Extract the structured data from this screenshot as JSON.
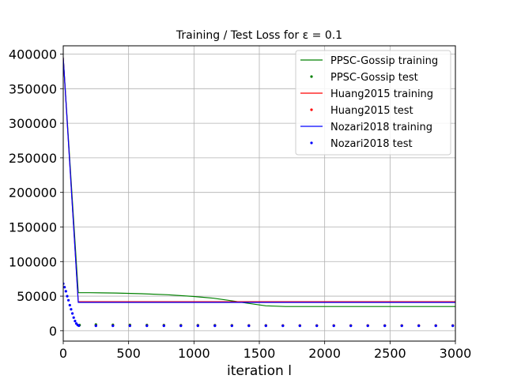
{
  "chart_data": {
    "type": "line",
    "title": "Training / Test Loss for ε = 0.1",
    "xlabel": "iteration l",
    "ylabel": "",
    "xlim": [
      0,
      3000
    ],
    "ylim": [
      -15000,
      412000
    ],
    "xticks": [
      0,
      500,
      1000,
      1500,
      2000,
      2500,
      3000
    ],
    "yticks": [
      0,
      50000,
      100000,
      150000,
      200000,
      250000,
      300000,
      350000,
      400000
    ],
    "grid": true,
    "legend_position": "top-right",
    "series": [
      {
        "name": "PPSC-Gossip training",
        "style": "line",
        "color": "#008000",
        "points": [
          [
            0,
            395000
          ],
          [
            115,
            55000
          ],
          [
            200,
            55000
          ],
          [
            400,
            54500
          ],
          [
            600,
            53500
          ],
          [
            800,
            52000
          ],
          [
            1000,
            49500
          ],
          [
            1150,
            47000
          ],
          [
            1300,
            43000
          ],
          [
            1400,
            40000
          ],
          [
            1550,
            36000
          ],
          [
            1700,
            35000
          ],
          [
            2000,
            35000
          ],
          [
            2500,
            35000
          ],
          [
            3000,
            35000
          ]
        ]
      },
      {
        "name": "PPSC-Gossip test",
        "style": "dots",
        "color": "#008000",
        "points": [
          [
            125,
            8200
          ],
          [
            250,
            9000
          ],
          [
            380,
            8600
          ],
          [
            510,
            8400
          ],
          [
            640,
            8300
          ],
          [
            770,
            8200
          ],
          [
            900,
            8100
          ],
          [
            1030,
            8000
          ],
          [
            1160,
            7900
          ],
          [
            1290,
            7800
          ],
          [
            1420,
            7700
          ],
          [
            1550,
            7700
          ],
          [
            1680,
            7600
          ],
          [
            1810,
            7600
          ],
          [
            1940,
            7600
          ],
          [
            2070,
            7600
          ],
          [
            2200,
            7600
          ],
          [
            2330,
            7600
          ],
          [
            2460,
            7600
          ],
          [
            2590,
            7600
          ],
          [
            2720,
            7600
          ],
          [
            2850,
            7600
          ],
          [
            2980,
            7600
          ]
        ]
      },
      {
        "name": "Huang2015 training",
        "style": "line",
        "color": "#ff0000",
        "points": [
          [
            0,
            395000
          ],
          [
            115,
            42000
          ],
          [
            3000,
            42000
          ]
        ]
      },
      {
        "name": "Huang2015 test",
        "style": "dots",
        "color": "#ff0000",
        "points": [
          [
            120,
            7500
          ],
          [
            250,
            7500
          ],
          [
            380,
            7500
          ],
          [
            510,
            7500
          ],
          [
            640,
            7500
          ],
          [
            770,
            7500
          ],
          [
            900,
            7500
          ],
          [
            1030,
            7500
          ],
          [
            1160,
            7500
          ],
          [
            1290,
            7500
          ],
          [
            1420,
            7500
          ],
          [
            1550,
            7500
          ],
          [
            1680,
            7500
          ],
          [
            1810,
            7500
          ],
          [
            1940,
            7500
          ],
          [
            2070,
            7500
          ],
          [
            2200,
            7500
          ],
          [
            2330,
            7500
          ],
          [
            2460,
            7500
          ],
          [
            2590,
            7500
          ],
          [
            2720,
            7500
          ],
          [
            2850,
            7500
          ],
          [
            2980,
            7500
          ]
        ]
      },
      {
        "name": "Nozari2018 training",
        "style": "line",
        "color": "#0000ff",
        "points": [
          [
            0,
            395000
          ],
          [
            115,
            41000
          ],
          [
            3000,
            41000
          ]
        ]
      },
      {
        "name": "Nozari2018 test",
        "style": "dots",
        "color": "#0000ff",
        "points": [
          [
            0,
            68000
          ],
          [
            10,
            63000
          ],
          [
            20,
            57000
          ],
          [
            30,
            50000
          ],
          [
            40,
            44000
          ],
          [
            50,
            37000
          ],
          [
            60,
            31000
          ],
          [
            70,
            25000
          ],
          [
            80,
            19000
          ],
          [
            90,
            14000
          ],
          [
            100,
            10500
          ],
          [
            110,
            8300
          ],
          [
            120,
            7300
          ],
          [
            250,
            7200
          ],
          [
            380,
            7200
          ],
          [
            510,
            7200
          ],
          [
            640,
            7200
          ],
          [
            770,
            7200
          ],
          [
            900,
            7200
          ],
          [
            1030,
            7200
          ],
          [
            1160,
            7200
          ],
          [
            1290,
            7200
          ],
          [
            1420,
            7200
          ],
          [
            1550,
            7200
          ],
          [
            1680,
            7200
          ],
          [
            1810,
            7200
          ],
          [
            1940,
            7200
          ],
          [
            2070,
            7200
          ],
          [
            2200,
            7200
          ],
          [
            2330,
            7200
          ],
          [
            2460,
            7200
          ],
          [
            2590,
            7200
          ],
          [
            2720,
            7200
          ],
          [
            2850,
            7200
          ],
          [
            2980,
            7200
          ]
        ]
      }
    ]
  }
}
